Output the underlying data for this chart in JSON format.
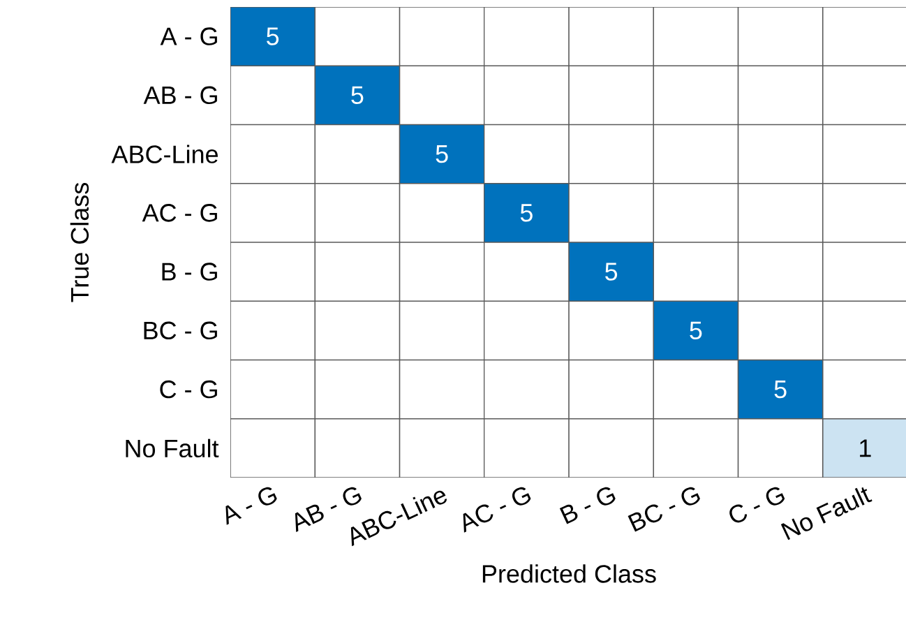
{
  "chart_data": {
    "type": "heatmap",
    "xlabel": "Predicted Class",
    "ylabel": "True Class",
    "categories": [
      "A - G",
      "AB - G",
      "ABC-Line",
      "AC - G",
      "B - G",
      "BC - G",
      "C - G",
      "No Fault"
    ],
    "y_categories": [
      "A - G",
      "AB - G",
      "ABC-Line",
      "AC - G",
      "B - G",
      "BC - G",
      "C - G",
      "No Fault"
    ],
    "cells": [
      [
        5,
        null,
        null,
        null,
        null,
        null,
        null,
        null
      ],
      [
        null,
        5,
        null,
        null,
        null,
        null,
        null,
        null
      ],
      [
        null,
        null,
        5,
        null,
        null,
        null,
        null,
        null
      ],
      [
        null,
        null,
        null,
        5,
        null,
        null,
        null,
        null
      ],
      [
        null,
        null,
        null,
        null,
        5,
        null,
        null,
        null
      ],
      [
        null,
        null,
        null,
        null,
        null,
        5,
        null,
        null
      ],
      [
        null,
        null,
        null,
        null,
        null,
        null,
        5,
        null
      ],
      [
        null,
        null,
        null,
        null,
        null,
        null,
        null,
        1
      ]
    ],
    "data_labels": true
  }
}
